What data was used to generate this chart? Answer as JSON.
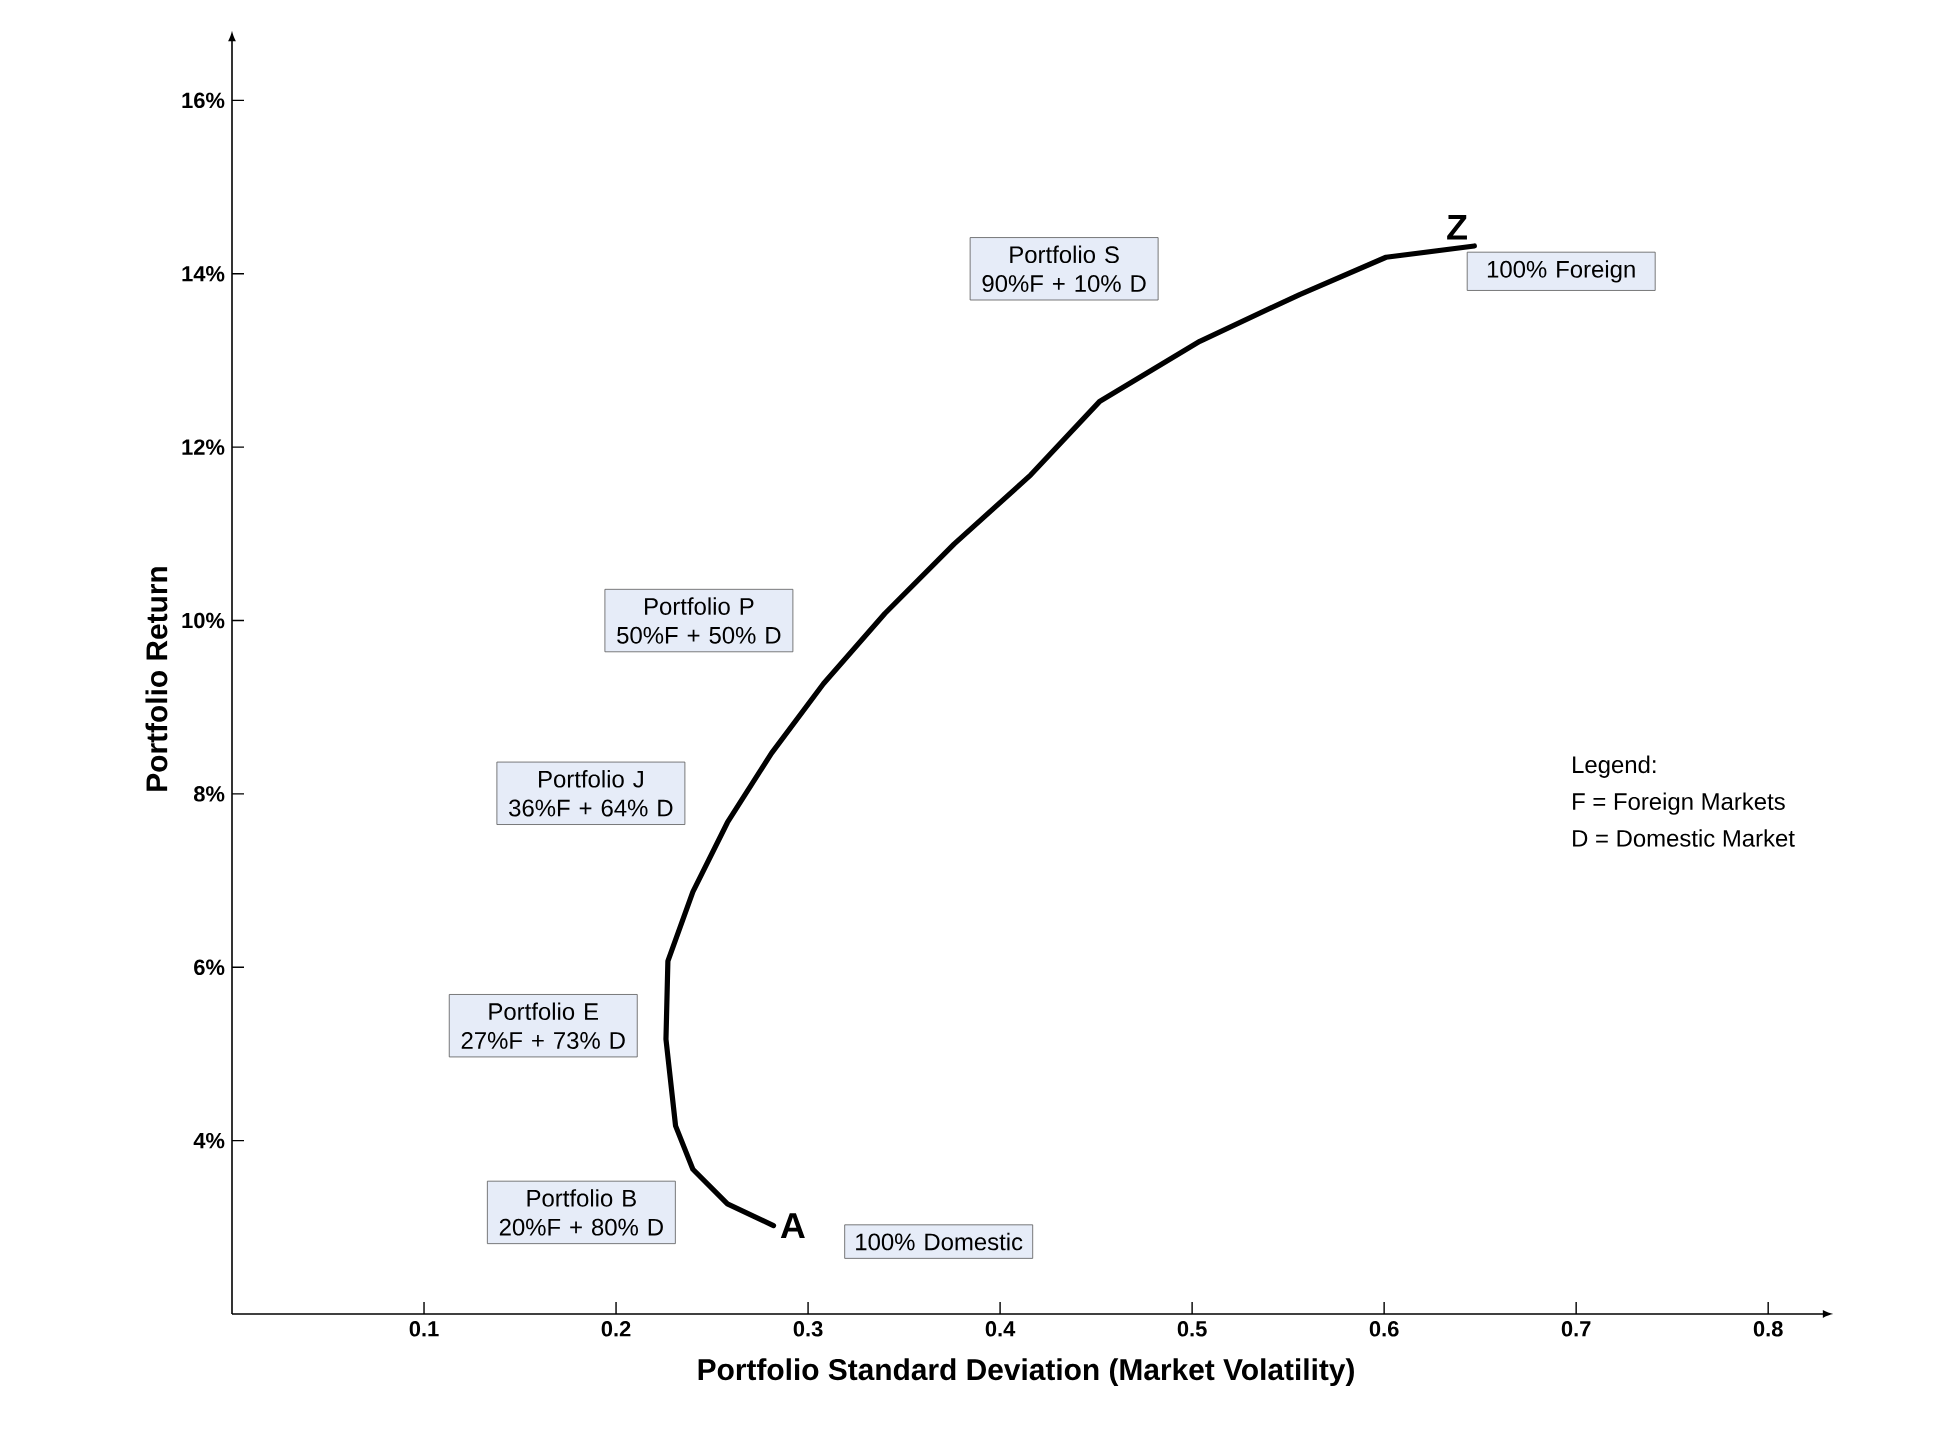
{
  "chart_data": {
    "type": "line",
    "xlabel": "Portfolio Standard Deviation (Market Volatility)",
    "ylabel": "Portfolio Return",
    "xlim": [
      0,
      0.827
    ],
    "ylim": [
      2,
      16.65
    ],
    "xticks": [
      0.1,
      0.2,
      0.3,
      0.4,
      0.5,
      0.6,
      0.7,
      0.8
    ],
    "yticks": [
      {
        "value": 4,
        "label": "4%"
      },
      {
        "value": 6,
        "label": "6%"
      },
      {
        "value": 8,
        "label": "8%"
      },
      {
        "value": 10,
        "label": "10%"
      },
      {
        "value": 12,
        "label": "12%"
      },
      {
        "value": 14,
        "label": "14%"
      },
      {
        "value": 16,
        "label": "16%"
      }
    ],
    "grid": false,
    "marker": "none",
    "line_style": "solid",
    "series": [
      {
        "color": "#000000",
        "x": [
          0.282,
          0.258,
          0.24,
          0.231,
          0.226,
          0.227,
          0.24,
          0.258,
          0.281,
          0.308,
          0.34,
          0.376,
          0.416,
          0.452,
          0.504,
          0.556,
          0.601,
          0.647
        ],
        "values": [
          3.02,
          3.27,
          3.67,
          4.17,
          5.17,
          6.07,
          6.87,
          7.67,
          8.47,
          9.27,
          10.08,
          10.88,
          11.68,
          12.53,
          13.22,
          13.76,
          14.19,
          14.32
        ],
        "value_labels": [
          "A",
          null,
          null,
          null,
          null,
          null,
          null,
          null,
          null,
          null,
          null,
          null,
          null,
          null,
          null,
          null,
          null,
          "Z"
        ]
      }
    ],
    "annotations": [
      "Portfolio S 90%F + 10% D",
      "Portfolio P 50%F + 50% D",
      "Portfolio J 36%F + 64% D",
      "Portfolio E 27%F + 73% D",
      "Portfolio B 20%F + 80% D",
      "100% Domestic",
      "100% Foreign",
      "Legend:",
      "F = Foreign Markets",
      "D = Domestic Market"
    ]
  }
}
